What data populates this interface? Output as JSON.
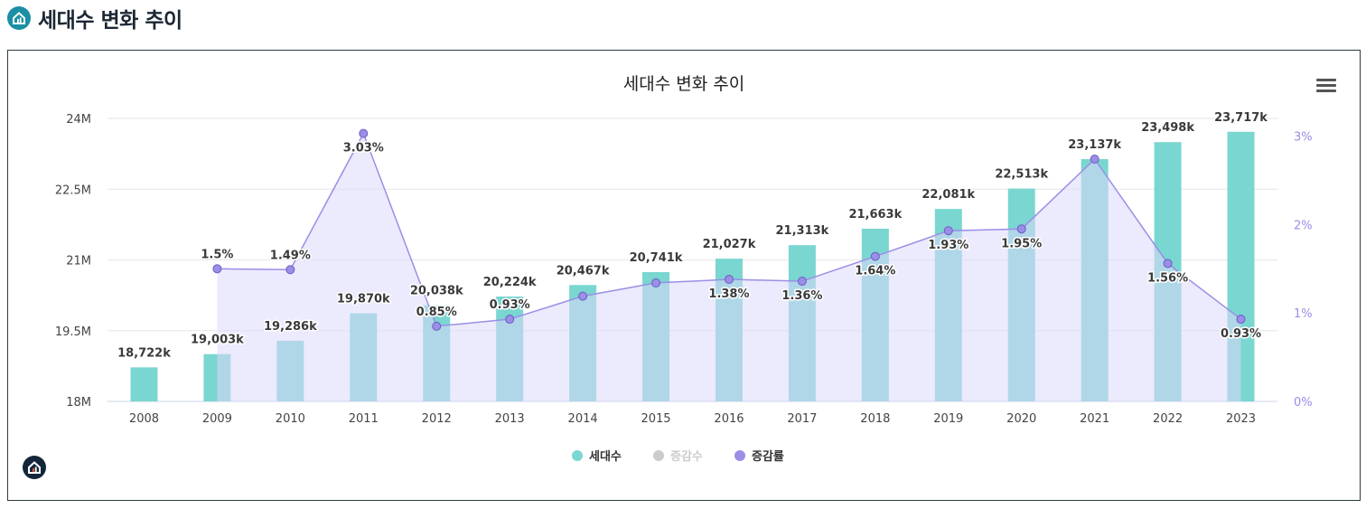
{
  "page": {
    "title": "세대수 변화 추이"
  },
  "colors": {
    "bars": "#7ad6d0",
    "growth_line": "#9a8ee6",
    "growth_fill": "#dcd8fb",
    "overlap": "#86c1dc",
    "label_text": "#3a3a3a",
    "right_axis": "#9a8ee6"
  },
  "icons": {
    "header_logo": "home-chart-icon",
    "menu": "hamburger-menu-icon",
    "corner_logo": "home-chart-icon"
  },
  "chart_data": {
    "type": "bar",
    "title": "세대수 변화 추이",
    "categories": [
      "2008",
      "2009",
      "2010",
      "2011",
      "2012",
      "2013",
      "2014",
      "2015",
      "2016",
      "2017",
      "2018",
      "2019",
      "2020",
      "2021",
      "2022",
      "2023"
    ],
    "series": [
      {
        "name": "세대수",
        "type": "bar",
        "axis": "left",
        "values": [
          18722,
          19003,
          19286,
          19870,
          20038,
          20224,
          20467,
          20741,
          21027,
          21313,
          21663,
          22081,
          22513,
          23137,
          23498,
          23717
        ],
        "labels": [
          "18,722k",
          "19,003k",
          "19,286k",
          "19,870k",
          "20,038k",
          "20,224k",
          "20,467k",
          "20,741k",
          "21,027k",
          "21,313k",
          "21,663k",
          "22,081k",
          "22,513k",
          "23,137k",
          "23,498k",
          "23,717k"
        ]
      },
      {
        "name": "증감수",
        "type": "hidden"
      },
      {
        "name": "증감률",
        "type": "area",
        "axis": "right",
        "values": [
          null,
          1.5,
          1.49,
          3.03,
          0.85,
          0.93,
          1.19,
          1.34,
          1.38,
          1.36,
          1.64,
          1.93,
          1.95,
          2.74,
          1.56,
          0.93
        ],
        "labels": [
          "",
          "1.5%",
          "1.49%",
          "3.03%",
          "0.85%",
          "0.93%",
          "",
          "",
          "1.38%",
          "1.36%",
          "1.64%",
          "1.93%",
          "1.95%",
          "",
          "1.56%",
          "0.93%"
        ]
      }
    ],
    "y_left": {
      "min": 18000,
      "max": 24000,
      "ticks": [
        18000,
        19500,
        21000,
        22500,
        24000
      ],
      "tick_labels": [
        "18M",
        "19.5M",
        "21M",
        "22.5M",
        "24M"
      ]
    },
    "y_right": {
      "min": 0,
      "max": 3.2,
      "ticks": [
        0,
        1,
        2,
        3
      ],
      "tick_labels": [
        "0%",
        "1%",
        "2%",
        "3%"
      ]
    },
    "legend": {
      "position": "bottom-center",
      "items": [
        {
          "label": "세대수",
          "color": "#7ad6d0",
          "active": true
        },
        {
          "label": "증감수",
          "color": "#cccccc",
          "active": false
        },
        {
          "label": "증감률",
          "color": "#9a8ee6",
          "active": true
        }
      ]
    },
    "grid": true
  }
}
